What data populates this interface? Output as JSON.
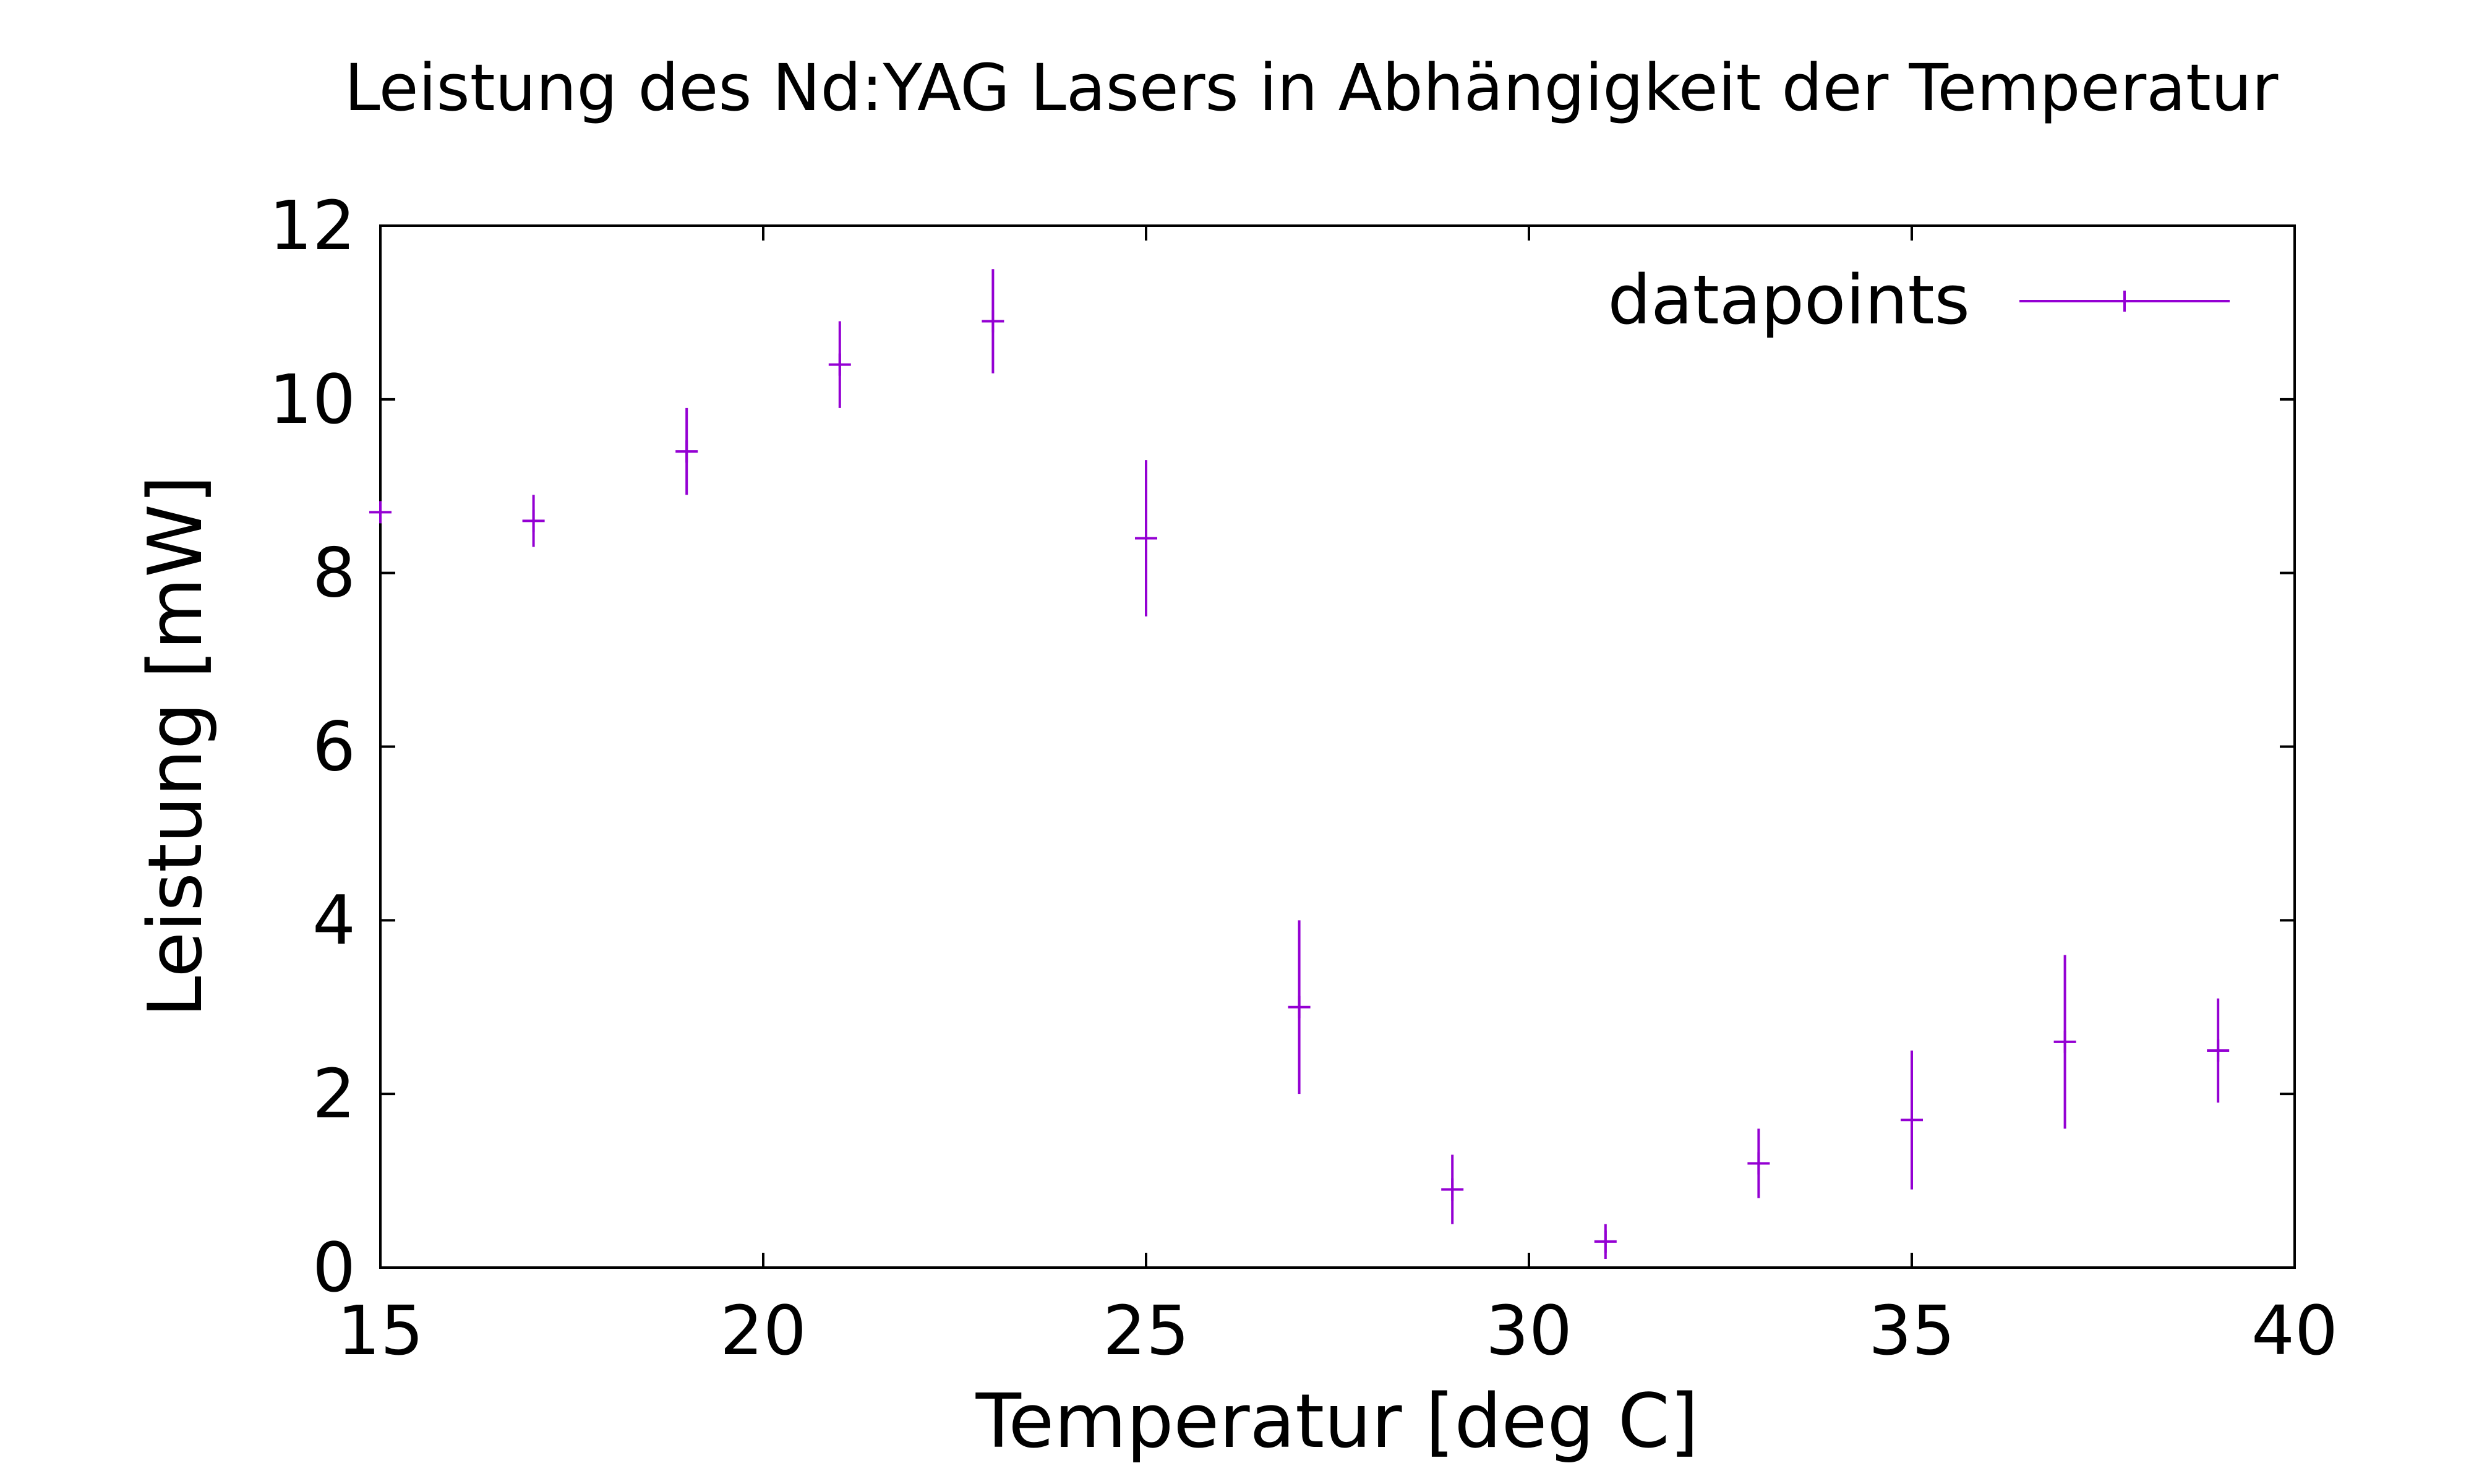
{
  "chart_data": {
    "type": "scatter",
    "title": "Leistung des Nd:YAG Lasers in Abhängigkeit der Temperatur",
    "xlabel": "Temperatur [deg C]",
    "ylabel": "Leistung [mW]",
    "xlim": [
      15,
      40
    ],
    "ylim": [
      0,
      12
    ],
    "xticks": [
      15,
      20,
      25,
      30,
      35,
      40
    ],
    "yticks": [
      0,
      2,
      4,
      6,
      8,
      10,
      12
    ],
    "grid": false,
    "legend_position": "top-right",
    "series": [
      {
        "name": "datapoints",
        "color": "#9400d3",
        "marker": "plus",
        "error_bars": "y",
        "points": [
          {
            "x": 15,
            "y": 8.7,
            "err": 0.0
          },
          {
            "x": 17,
            "y": 8.6,
            "err": 0.3
          },
          {
            "x": 19,
            "y": 9.4,
            "err": 0.5
          },
          {
            "x": 21,
            "y": 10.4,
            "err": 0.5
          },
          {
            "x": 23,
            "y": 10.9,
            "err": 0.6
          },
          {
            "x": 25,
            "y": 8.4,
            "err": 0.9
          },
          {
            "x": 27,
            "y": 3.0,
            "err": 1.0
          },
          {
            "x": 29,
            "y": 0.9,
            "err": 0.4
          },
          {
            "x": 31,
            "y": 0.3,
            "err": 0.2
          },
          {
            "x": 33,
            "y": 1.2,
            "err": 0.4
          },
          {
            "x": 35,
            "y": 1.7,
            "err": 0.8
          },
          {
            "x": 37,
            "y": 2.6,
            "err": 1.0
          },
          {
            "x": 39,
            "y": 2.5,
            "err": 0.6
          }
        ]
      }
    ]
  }
}
